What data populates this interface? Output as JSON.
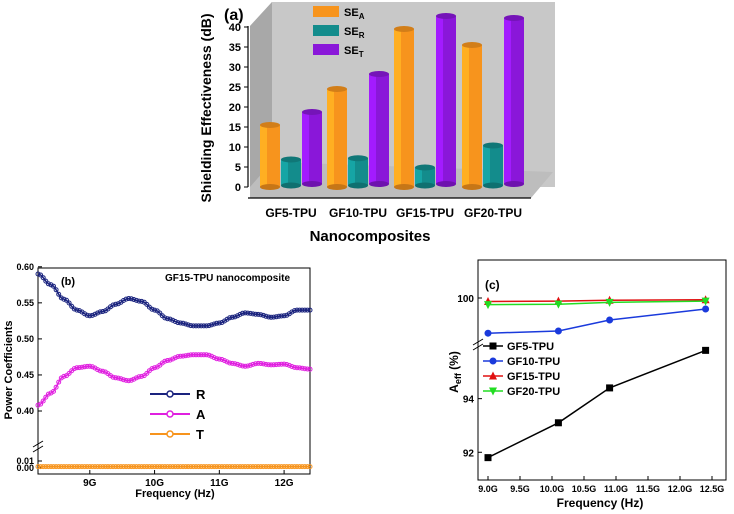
{
  "chart_data": [
    {
      "type": "bar",
      "panel_label": "(a)",
      "categories": [
        "GF5-TPU",
        "GF10-TPU",
        "GF15-TPU",
        "GF20-TPU"
      ],
      "series": [
        {
          "name_main": "SE",
          "name_sub": "A",
          "color": "#f7941d",
          "values": [
            15.5,
            24.5,
            39.5,
            35.5
          ]
        },
        {
          "name_main": "SE",
          "name_sub": "R",
          "color": "#138c8c",
          "values": [
            6.5,
            6.8,
            4.5,
            10.0
          ]
        },
        {
          "name_main": "SE",
          "name_sub": "T",
          "color": "#8a17d9",
          "values": [
            18.0,
            27.5,
            42.0,
            41.5
          ]
        }
      ],
      "ylabel": "Shielding Effectiveness (dB)",
      "xlabel": "Nanocomposites",
      "ylim": [
        0,
        40
      ],
      "yticks": [
        0,
        5,
        10,
        15,
        20,
        25,
        30,
        35,
        40
      ]
    },
    {
      "type": "line",
      "panel_label": "(b)",
      "title": "GF15-TPU nanocomposite",
      "xlabel": "Frequency (Hz)",
      "ylabel": "Power Coefficients",
      "xticks": [
        "9G",
        "10G",
        "11G",
        "12G"
      ],
      "xtick_values": [
        9,
        10,
        11,
        12
      ],
      "xlim": [
        8.2,
        12.4
      ],
      "yticks_upper": [
        "0.40",
        "0.45",
        "0.50",
        "0.55",
        "0.60"
      ],
      "yticks_lower": [
        "0.00",
        "0.01"
      ],
      "series": [
        {
          "name": "R",
          "color": "#1a237e",
          "x": [
            8.2,
            8.4,
            8.6,
            8.8,
            9.0,
            9.2,
            9.4,
            9.6,
            9.8,
            10.0,
            10.2,
            10.4,
            10.6,
            10.8,
            11.0,
            11.2,
            11.4,
            11.6,
            11.8,
            12.0,
            12.2,
            12.4
          ],
          "y": [
            0.59,
            0.575,
            0.555,
            0.54,
            0.532,
            0.538,
            0.548,
            0.556,
            0.552,
            0.54,
            0.528,
            0.522,
            0.518,
            0.518,
            0.522,
            0.53,
            0.536,
            0.534,
            0.53,
            0.532,
            0.54,
            0.54
          ]
        },
        {
          "name": "A",
          "color": "#e020e0",
          "x": [
            8.2,
            8.4,
            8.6,
            8.8,
            9.0,
            9.2,
            9.4,
            9.6,
            9.8,
            10.0,
            10.2,
            10.4,
            10.6,
            10.8,
            11.0,
            11.2,
            11.4,
            11.6,
            11.8,
            12.0,
            12.2,
            12.4
          ],
          "y": [
            0.408,
            0.425,
            0.448,
            0.46,
            0.462,
            0.455,
            0.446,
            0.442,
            0.448,
            0.46,
            0.47,
            0.476,
            0.478,
            0.478,
            0.472,
            0.466,
            0.462,
            0.466,
            0.464,
            0.465,
            0.46,
            0.458
          ]
        },
        {
          "name": "T",
          "color": "#f7941d",
          "x": [
            8.2,
            8.4,
            8.6,
            8.8,
            9.0,
            9.2,
            9.4,
            9.6,
            9.8,
            10.0,
            10.2,
            10.4,
            10.6,
            10.8,
            11.0,
            11.2,
            11.4,
            11.6,
            11.8,
            12.0,
            12.2,
            12.4
          ],
          "y": [
            0.002,
            0.002,
            0.002,
            0.002,
            0.002,
            0.002,
            0.002,
            0.002,
            0.002,
            0.002,
            0.002,
            0.002,
            0.002,
            0.002,
            0.002,
            0.002,
            0.002,
            0.002,
            0.002,
            0.002,
            0.002,
            0.002
          ]
        }
      ]
    },
    {
      "type": "line",
      "panel_label": "(c)",
      "xlabel": "Frequency (Hz)",
      "ylabel_main": "A",
      "ylabel_sub": "eff",
      "ylabel_tail": " (%)",
      "xticks": [
        "9.0G",
        "9.5G",
        "10.0G",
        "10.5G",
        "11.0G",
        "11.5G",
        "12.0G",
        "12.5G"
      ],
      "xtick_values": [
        9.0,
        9.5,
        10.0,
        10.5,
        11.0,
        11.5,
        12.0,
        12.5
      ],
      "xlim": [
        9.0,
        12.5
      ],
      "yticks": [
        "92",
        "94",
        "100"
      ],
      "series": [
        {
          "name": "GF5-TPU",
          "color": "#000000",
          "marker": "square",
          "x": [
            9.0,
            10.1,
            10.9,
            12.4
          ],
          "y": [
            91.8,
            93.1,
            94.4,
            95.8
          ]
        },
        {
          "name": "GF10-TPU",
          "color": "#1a3adc",
          "marker": "circle",
          "x": [
            9.0,
            10.1,
            10.9,
            12.4
          ],
          "y": [
            99.2,
            99.25,
            99.5,
            99.75
          ]
        },
        {
          "name": "GF15-TPU",
          "color": "#e01010",
          "marker": "triangle-up",
          "x": [
            9.0,
            10.1,
            10.9,
            12.4
          ],
          "y": [
            99.92,
            99.93,
            99.95,
            99.96
          ]
        },
        {
          "name": "GF20-TPU",
          "color": "#22dd22",
          "marker": "triangle-down",
          "x": [
            9.0,
            10.1,
            10.9,
            12.4
          ],
          "y": [
            99.85,
            99.86,
            99.9,
            99.93
          ]
        }
      ]
    }
  ]
}
